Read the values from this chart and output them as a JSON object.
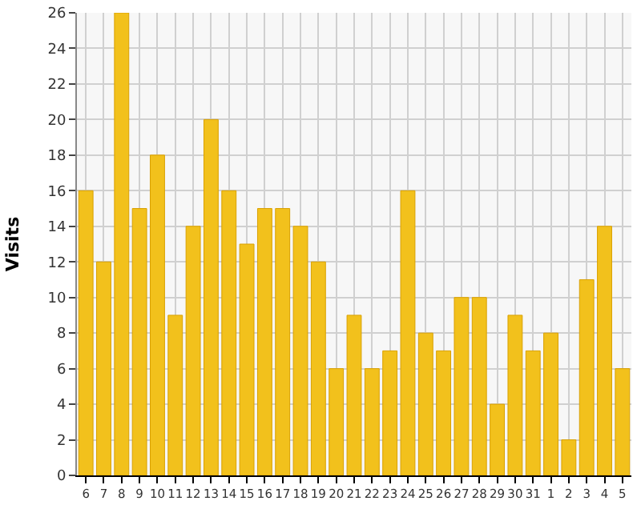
{
  "chart_data": {
    "type": "bar",
    "ylabel": "Visits",
    "categories": [
      "6",
      "7",
      "8",
      "9",
      "10",
      "11",
      "12",
      "13",
      "14",
      "15",
      "16",
      "17",
      "18",
      "19",
      "20",
      "21",
      "22",
      "23",
      "24",
      "25",
      "26",
      "27",
      "28",
      "29",
      "30",
      "31",
      "1",
      "2",
      "3",
      "4",
      "5"
    ],
    "values": [
      16,
      12,
      26,
      15,
      18,
      9,
      14,
      20,
      16,
      13,
      15,
      15,
      14,
      12,
      6,
      9,
      6,
      7,
      16,
      8,
      7,
      10,
      10,
      4,
      9,
      7,
      8,
      2,
      11,
      14,
      6
    ],
    "color": "#f2c11c",
    "ylim": [
      0,
      26
    ],
    "yticks": [
      0,
      2,
      4,
      6,
      8,
      10,
      12,
      14,
      16,
      18,
      20,
      22,
      24,
      26
    ],
    "grid": true
  }
}
